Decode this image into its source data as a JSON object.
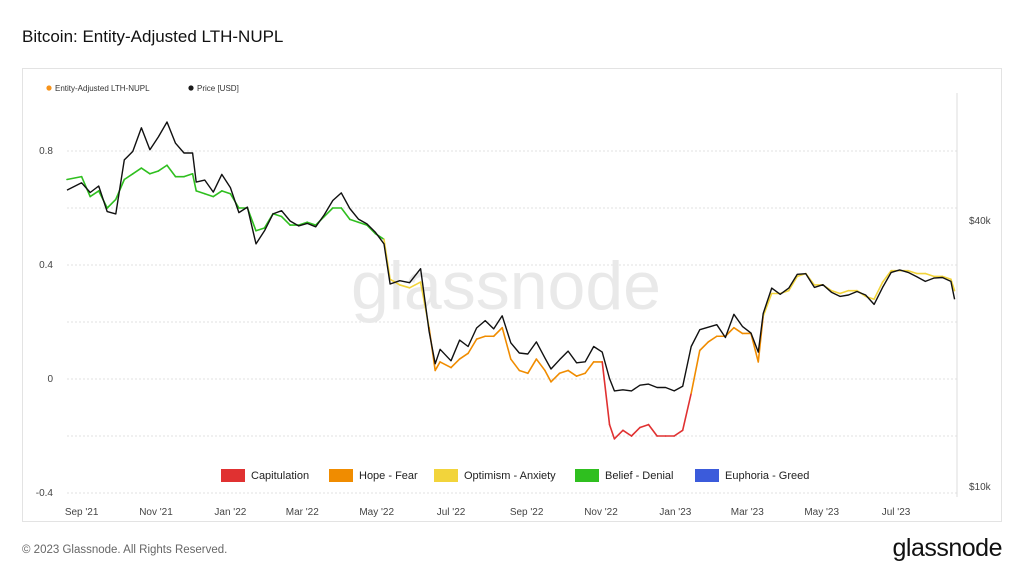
{
  "page": {
    "title": "Bitcoin: Entity-Adjusted LTH-NUPL",
    "copyright": "© 2023 Glassnode. All Rights Reserved.",
    "brand": "glassnode",
    "watermark": "glassnode"
  },
  "chart_data": {
    "type": "line",
    "legend": [
      {
        "name": "Entity-Adjusted LTH-NUPL",
        "color": "#f7931a"
      },
      {
        "name": "Price [USD]",
        "color": "#1a1a1a"
      }
    ],
    "x_ticks": [
      "Sep '21",
      "Nov '21",
      "Jan '22",
      "Mar '22",
      "May '22",
      "Jul '22",
      "Sep '22",
      "Nov '22",
      "Jan '23",
      "Mar '23",
      "May '23",
      "Jul '23"
    ],
    "left_axis": {
      "ticks": [
        "0.8",
        "0.4",
        "0",
        "-0.4"
      ],
      "range": [
        -0.4,
        0.8
      ]
    },
    "right_axis": {
      "ticks": [
        "$40k",
        "$10k"
      ],
      "scale": "log"
    },
    "zones": [
      {
        "name": "Capitulation",
        "color": "#e03131",
        "range": [
          -1,
          0
        ]
      },
      {
        "name": "Hope - Fear",
        "color": "#f08c00",
        "range": [
          0,
          0.25
        ]
      },
      {
        "name": "Optimism - Anxiety",
        "color": "#f2d43b",
        "range": [
          0.25,
          0.5
        ]
      },
      {
        "name": "Belief - Denial",
        "color": "#2fbf1f",
        "range": [
          0.5,
          0.75
        ]
      },
      {
        "name": "Euphoria - Greed",
        "color": "#3b5bdb",
        "range": [
          0.75,
          1
        ]
      }
    ],
    "x_range": [
      "2021-08-20",
      "2023-08-20"
    ],
    "series": [
      {
        "name": "Entity-Adjusted LTH-NUPL",
        "unit": "ratio",
        "points": [
          [
            "2021-08-20",
            0.7
          ],
          [
            "2021-09-01",
            0.71
          ],
          [
            "2021-09-08",
            0.64
          ],
          [
            "2021-09-15",
            0.66
          ],
          [
            "2021-09-22",
            0.6
          ],
          [
            "2021-09-29",
            0.63
          ],
          [
            "2021-10-06",
            0.7
          ],
          [
            "2021-10-13",
            0.72
          ],
          [
            "2021-10-20",
            0.74
          ],
          [
            "2021-10-27",
            0.72
          ],
          [
            "2021-11-03",
            0.73
          ],
          [
            "2021-11-10",
            0.75
          ],
          [
            "2021-11-17",
            0.71
          ],
          [
            "2021-11-24",
            0.71
          ],
          [
            "2021-12-01",
            0.72
          ],
          [
            "2021-12-04",
            0.66
          ],
          [
            "2021-12-11",
            0.65
          ],
          [
            "2021-12-18",
            0.64
          ],
          [
            "2021-12-25",
            0.66
          ],
          [
            "2022-01-01",
            0.65
          ],
          [
            "2022-01-08",
            0.6
          ],
          [
            "2022-01-15",
            0.6
          ],
          [
            "2022-01-22",
            0.52
          ],
          [
            "2022-01-29",
            0.53
          ],
          [
            "2022-02-05",
            0.58
          ],
          [
            "2022-02-12",
            0.57
          ],
          [
            "2022-02-19",
            0.54
          ],
          [
            "2022-02-26",
            0.54
          ],
          [
            "2022-03-05",
            0.55
          ],
          [
            "2022-03-12",
            0.54
          ],
          [
            "2022-03-19",
            0.57
          ],
          [
            "2022-03-26",
            0.6
          ],
          [
            "2022-04-02",
            0.6
          ],
          [
            "2022-04-09",
            0.56
          ],
          [
            "2022-04-16",
            0.55
          ],
          [
            "2022-04-23",
            0.54
          ],
          [
            "2022-04-30",
            0.51
          ],
          [
            "2022-05-07",
            0.49
          ],
          [
            "2022-05-12",
            0.35
          ],
          [
            "2022-05-20",
            0.33
          ],
          [
            "2022-05-28",
            0.32
          ],
          [
            "2022-06-06",
            0.34
          ],
          [
            "2022-06-13",
            0.18
          ],
          [
            "2022-06-18",
            0.03
          ],
          [
            "2022-06-22",
            0.06
          ],
          [
            "2022-07-01",
            0.04
          ],
          [
            "2022-07-08",
            0.07
          ],
          [
            "2022-07-15",
            0.09
          ],
          [
            "2022-07-22",
            0.14
          ],
          [
            "2022-07-29",
            0.15
          ],
          [
            "2022-08-05",
            0.15
          ],
          [
            "2022-08-12",
            0.18
          ],
          [
            "2022-08-19",
            0.07
          ],
          [
            "2022-08-26",
            0.03
          ],
          [
            "2022-09-02",
            0.02
          ],
          [
            "2022-09-09",
            0.07
          ],
          [
            "2022-09-16",
            0.03
          ],
          [
            "2022-09-21",
            -0.01
          ],
          [
            "2022-09-28",
            0.02
          ],
          [
            "2022-10-05",
            0.03
          ],
          [
            "2022-10-12",
            0.01
          ],
          [
            "2022-10-19",
            0.02
          ],
          [
            "2022-10-26",
            0.06
          ],
          [
            "2022-11-02",
            0.06
          ],
          [
            "2022-11-08",
            -0.16
          ],
          [
            "2022-11-12",
            -0.21
          ],
          [
            "2022-11-19",
            -0.18
          ],
          [
            "2022-11-26",
            -0.2
          ],
          [
            "2022-12-03",
            -0.17
          ],
          [
            "2022-12-10",
            -0.16
          ],
          [
            "2022-12-17",
            -0.2
          ],
          [
            "2022-12-24",
            -0.2
          ],
          [
            "2022-12-31",
            -0.2
          ],
          [
            "2023-01-07",
            -0.18
          ],
          [
            "2023-01-14",
            -0.05
          ],
          [
            "2023-01-21",
            0.1
          ],
          [
            "2023-01-28",
            0.13
          ],
          [
            "2023-02-04",
            0.15
          ],
          [
            "2023-02-11",
            0.15
          ],
          [
            "2023-02-18",
            0.18
          ],
          [
            "2023-02-25",
            0.16
          ],
          [
            "2023-03-04",
            0.16
          ],
          [
            "2023-03-10",
            0.06
          ],
          [
            "2023-03-14",
            0.22
          ],
          [
            "2023-03-21",
            0.3
          ],
          [
            "2023-03-28",
            0.3
          ],
          [
            "2023-04-04",
            0.31
          ],
          [
            "2023-04-11",
            0.36
          ],
          [
            "2023-04-18",
            0.37
          ],
          [
            "2023-04-25",
            0.33
          ],
          [
            "2023-05-02",
            0.33
          ],
          [
            "2023-05-09",
            0.31
          ],
          [
            "2023-05-16",
            0.3
          ],
          [
            "2023-05-23",
            0.31
          ],
          [
            "2023-05-30",
            0.31
          ],
          [
            "2023-06-06",
            0.29
          ],
          [
            "2023-06-13",
            0.28
          ],
          [
            "2023-06-20",
            0.34
          ],
          [
            "2023-06-27",
            0.38
          ],
          [
            "2023-07-04",
            0.38
          ],
          [
            "2023-07-11",
            0.38
          ],
          [
            "2023-07-18",
            0.37
          ],
          [
            "2023-07-25",
            0.37
          ],
          [
            "2023-08-01",
            0.36
          ],
          [
            "2023-08-08",
            0.36
          ],
          [
            "2023-08-15",
            0.35
          ],
          [
            "2023-08-18",
            0.31
          ]
        ]
      },
      {
        "name": "Price [USD]",
        "unit": "USD",
        "points": [
          [
            "2021-08-20",
            47000
          ],
          [
            "2021-09-01",
            48800
          ],
          [
            "2021-09-08",
            46400
          ],
          [
            "2021-09-15",
            48000
          ],
          [
            "2021-09-22",
            42000
          ],
          [
            "2021-09-29",
            41500
          ],
          [
            "2021-10-06",
            55000
          ],
          [
            "2021-10-13",
            57500
          ],
          [
            "2021-10-20",
            65000
          ],
          [
            "2021-10-27",
            58000
          ],
          [
            "2021-11-03",
            62000
          ],
          [
            "2021-11-10",
            67000
          ],
          [
            "2021-11-17",
            60000
          ],
          [
            "2021-11-24",
            57000
          ],
          [
            "2021-12-01",
            57000
          ],
          [
            "2021-12-04",
            49000
          ],
          [
            "2021-12-11",
            49500
          ],
          [
            "2021-12-18",
            46500
          ],
          [
            "2021-12-25",
            51000
          ],
          [
            "2022-01-01",
            47600
          ],
          [
            "2022-01-08",
            41800
          ],
          [
            "2022-01-15",
            43000
          ],
          [
            "2022-01-22",
            35500
          ],
          [
            "2022-01-29",
            38000
          ],
          [
            "2022-02-05",
            41500
          ],
          [
            "2022-02-12",
            42200
          ],
          [
            "2022-02-19",
            40000
          ],
          [
            "2022-02-26",
            39000
          ],
          [
            "2022-03-05",
            39500
          ],
          [
            "2022-03-12",
            38800
          ],
          [
            "2022-03-19",
            41300
          ],
          [
            "2022-03-26",
            44500
          ],
          [
            "2022-04-02",
            46300
          ],
          [
            "2022-04-09",
            42700
          ],
          [
            "2022-04-16",
            40400
          ],
          [
            "2022-04-23",
            39400
          ],
          [
            "2022-04-30",
            37700
          ],
          [
            "2022-05-07",
            35500
          ],
          [
            "2022-05-12",
            28800
          ],
          [
            "2022-05-20",
            29300
          ],
          [
            "2022-05-28",
            29000
          ],
          [
            "2022-06-06",
            31200
          ],
          [
            "2022-06-13",
            22500
          ],
          [
            "2022-06-18",
            19000
          ],
          [
            "2022-06-22",
            20500
          ],
          [
            "2022-07-01",
            19300
          ],
          [
            "2022-07-08",
            21500
          ],
          [
            "2022-07-15",
            20800
          ],
          [
            "2022-07-22",
            22900
          ],
          [
            "2022-07-29",
            23800
          ],
          [
            "2022-08-05",
            22800
          ],
          [
            "2022-08-12",
            24400
          ],
          [
            "2022-08-19",
            21200
          ],
          [
            "2022-08-26",
            20100
          ],
          [
            "2022-09-02",
            20000
          ],
          [
            "2022-09-09",
            21300
          ],
          [
            "2022-09-16",
            19600
          ],
          [
            "2022-09-21",
            18500
          ],
          [
            "2022-09-28",
            19400
          ],
          [
            "2022-10-05",
            20300
          ],
          [
            "2022-10-12",
            19100
          ],
          [
            "2022-10-19",
            19200
          ],
          [
            "2022-10-26",
            20800
          ],
          [
            "2022-11-02",
            20200
          ],
          [
            "2022-11-08",
            17600
          ],
          [
            "2022-11-12",
            16500
          ],
          [
            "2022-11-19",
            16600
          ],
          [
            "2022-11-26",
            16500
          ],
          [
            "2022-12-03",
            17000
          ],
          [
            "2022-12-10",
            17100
          ],
          [
            "2022-12-17",
            16800
          ],
          [
            "2022-12-24",
            16800
          ],
          [
            "2022-12-31",
            16500
          ],
          [
            "2023-01-07",
            16900
          ],
          [
            "2023-01-14",
            20800
          ],
          [
            "2023-01-21",
            22700
          ],
          [
            "2023-01-28",
            23000
          ],
          [
            "2023-02-04",
            23300
          ],
          [
            "2023-02-11",
            21800
          ],
          [
            "2023-02-18",
            24600
          ],
          [
            "2023-02-25",
            23100
          ],
          [
            "2023-03-04",
            22300
          ],
          [
            "2023-03-10",
            20200
          ],
          [
            "2023-03-14",
            24700
          ],
          [
            "2023-03-21",
            28200
          ],
          [
            "2023-03-28",
            27300
          ],
          [
            "2023-04-04",
            28200
          ],
          [
            "2023-04-11",
            30300
          ],
          [
            "2023-04-18",
            30400
          ],
          [
            "2023-04-25",
            28300
          ],
          [
            "2023-05-02",
            28700
          ],
          [
            "2023-05-09",
            27600
          ],
          [
            "2023-05-16",
            27000
          ],
          [
            "2023-05-23",
            27200
          ],
          [
            "2023-05-30",
            27700
          ],
          [
            "2023-06-06",
            27200
          ],
          [
            "2023-06-13",
            25900
          ],
          [
            "2023-06-20",
            28300
          ],
          [
            "2023-06-27",
            30600
          ],
          [
            "2023-07-04",
            31000
          ],
          [
            "2023-07-11",
            30600
          ],
          [
            "2023-07-18",
            29900
          ],
          [
            "2023-07-25",
            29200
          ],
          [
            "2023-08-01",
            29700
          ],
          [
            "2023-08-08",
            29800
          ],
          [
            "2023-08-15",
            29200
          ],
          [
            "2023-08-18",
            26600
          ]
        ]
      }
    ]
  }
}
